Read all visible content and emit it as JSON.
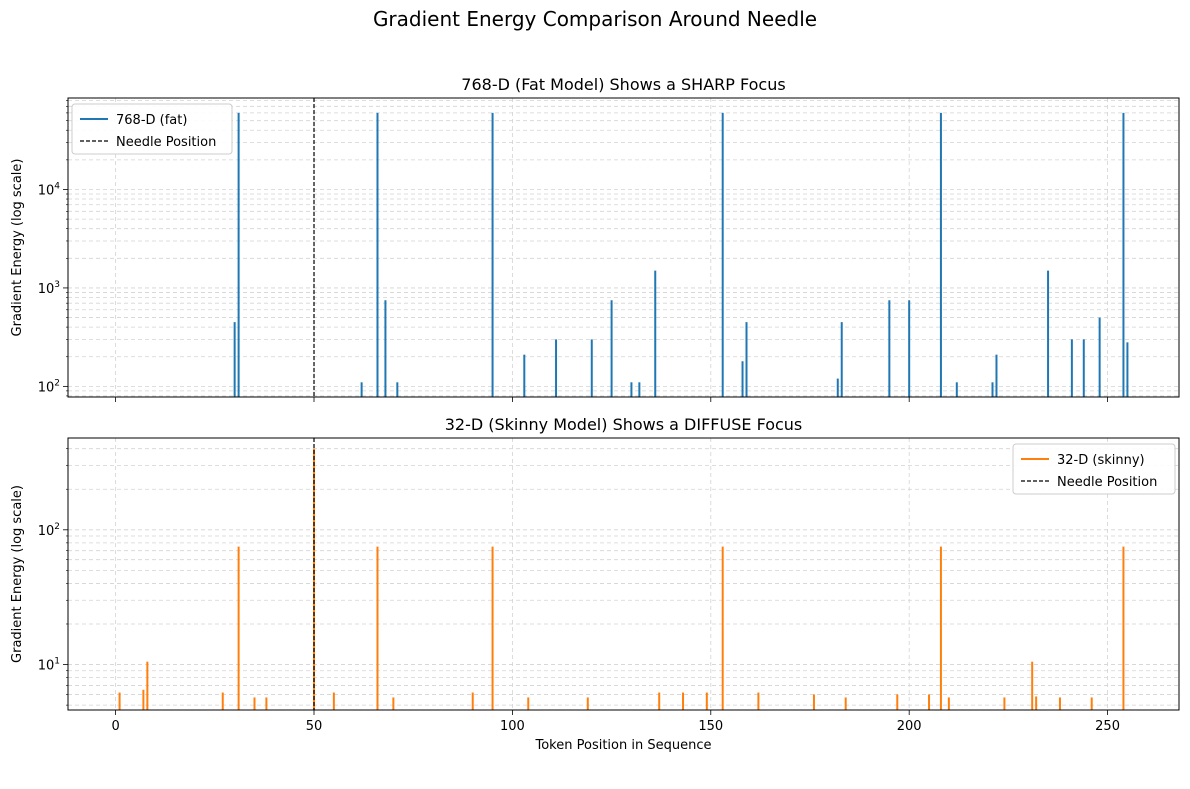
{
  "figure": {
    "suptitle": "Gradient Energy Comparison Around Needle"
  },
  "chart_data": [
    {
      "type": "line",
      "title": "768-D (Fat Model) Shows a SHARP Focus",
      "xlabel": "",
      "ylabel": "Gradient Energy (log scale)",
      "yscale": "log",
      "xlim": [
        -12,
        268
      ],
      "ylim": [
        78,
        85000
      ],
      "xticks": [
        0,
        50,
        100,
        150,
        200,
        250
      ],
      "show_xtick_labels": false,
      "yticks": [
        {
          "value": 100,
          "base": "10",
          "exp": "2"
        },
        {
          "value": 1000,
          "base": "10",
          "exp": "3"
        },
        {
          "value": 10000,
          "base": "10",
          "exp": "4"
        }
      ],
      "grid": true,
      "legend_position": "upper-left",
      "needle_x": 50,
      "legend": [
        {
          "label": "768-D (fat)",
          "style": "solid",
          "color": "#1f77b4"
        },
        {
          "label": "Needle Position",
          "style": "dashed",
          "color": "#000000"
        }
      ],
      "series": [
        {
          "name": "768-D (fat)",
          "color": "#1f77b4",
          "peaks": [
            [
              30,
              450
            ],
            [
              31,
              60000
            ],
            [
              62,
              110
            ],
            [
              66,
              60000
            ],
            [
              68,
              750
            ],
            [
              71,
              110
            ],
            [
              95,
              60000
            ],
            [
              103,
              210
            ],
            [
              111,
              300
            ],
            [
              120,
              300
            ],
            [
              125,
              750
            ],
            [
              130,
              110
            ],
            [
              132,
              110
            ],
            [
              136,
              1500
            ],
            [
              153,
              60000
            ],
            [
              158,
              180
            ],
            [
              159,
              450
            ],
            [
              182,
              120
            ],
            [
              183,
              450
            ],
            [
              195,
              750
            ],
            [
              200,
              750
            ],
            [
              208,
              60000
            ],
            [
              212,
              110
            ],
            [
              221,
              110
            ],
            [
              222,
              210
            ],
            [
              235,
              1500
            ],
            [
              241,
              300
            ],
            [
              244,
              300
            ],
            [
              248,
              500
            ],
            [
              254,
              60000
            ],
            [
              255,
              280
            ]
          ]
        }
      ]
    },
    {
      "type": "line",
      "title": "32-D (Skinny Model) Shows a DIFFUSE Focus",
      "xlabel": "Token Position in Sequence",
      "ylabel": "Gradient Energy (log scale)",
      "yscale": "log",
      "xlim": [
        -12,
        268
      ],
      "ylim": [
        4.6,
        480
      ],
      "xticks": [
        0,
        50,
        100,
        150,
        200,
        250
      ],
      "show_xtick_labels": true,
      "yticks": [
        {
          "value": 10,
          "base": "10",
          "exp": "1"
        },
        {
          "value": 100,
          "base": "10",
          "exp": "2"
        }
      ],
      "grid": true,
      "legend_position": "upper-right",
      "needle_x": 50,
      "legend": [
        {
          "label": "32-D (skinny)",
          "style": "solid",
          "color": "#ff7f0e"
        },
        {
          "label": "Needle Position",
          "style": "dashed",
          "color": "#000000"
        }
      ],
      "series": [
        {
          "name": "32-D (skinny)",
          "color": "#ff7f0e",
          "peaks": [
            [
              1,
              6.2
            ],
            [
              7,
              6.5
            ],
            [
              8,
              10.5
            ],
            [
              27,
              6.2
            ],
            [
              31,
              75
            ],
            [
              35,
              5.7
            ],
            [
              38,
              5.7
            ],
            [
              50,
              400
            ],
            [
              55,
              6.2
            ],
            [
              66,
              75
            ],
            [
              70,
              5.7
            ],
            [
              90,
              6.2
            ],
            [
              95,
              75
            ],
            [
              104,
              5.7
            ],
            [
              119,
              5.7
            ],
            [
              137,
              6.2
            ],
            [
              143,
              6.2
            ],
            [
              149,
              6.2
            ],
            [
              153,
              75
            ],
            [
              162,
              6.2
            ],
            [
              176,
              6
            ],
            [
              184,
              5.7
            ],
            [
              197,
              6
            ],
            [
              205,
              6
            ],
            [
              208,
              75
            ],
            [
              210,
              5.7
            ],
            [
              224,
              5.7
            ],
            [
              231,
              10.5
            ],
            [
              232,
              5.8
            ],
            [
              238,
              5.7
            ],
            [
              246,
              5.7
            ],
            [
              254,
              75
            ]
          ]
        }
      ]
    }
  ]
}
